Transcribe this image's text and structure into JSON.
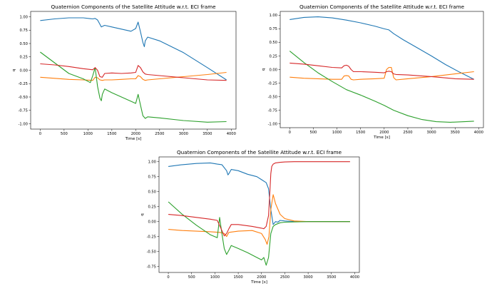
{
  "chart_data": [
    {
      "type": "line",
      "title": "Quaternion Components of the Satellite Attitude w.r.t. ECI frame",
      "xlabel": "Time [s]",
      "ylabel": "q",
      "xlim": [
        -200,
        4100
      ],
      "ylim": [
        -1.1,
        1.1
      ],
      "xticks": [
        0,
        500,
        1000,
        1500,
        2000,
        2500,
        3000,
        3500,
        4000
      ],
      "yticks": [
        1.0,
        0.75,
        0.5,
        0.25,
        0.0,
        -0.25,
        -0.5,
        -0.75,
        -1.0
      ],
      "grid": false,
      "series": [
        {
          "color": "#1f77b4",
          "x": [
            0,
            300,
            600,
            900,
            1100,
            1150,
            1200,
            1250,
            1280,
            1300,
            1350,
            1500,
            1700,
            1900,
            2000,
            2050,
            2100,
            2150,
            2180,
            2200,
            2250,
            2500,
            3000,
            3500,
            3900
          ],
          "y": [
            0.93,
            0.96,
            0.98,
            0.98,
            0.96,
            0.97,
            0.94,
            0.86,
            0.81,
            0.82,
            0.84,
            0.81,
            0.77,
            0.73,
            0.78,
            0.9,
            0.72,
            0.52,
            0.44,
            0.55,
            0.62,
            0.55,
            0.33,
            0.05,
            -0.18
          ]
        },
        {
          "color": "#ff7f0e",
          "x": [
            0,
            300,
            600,
            900,
            1100,
            1150,
            1200,
            1250,
            1300,
            1350,
            1500,
            1700,
            1900,
            2000,
            2050,
            2100,
            2150,
            2200,
            2250,
            2500,
            3000,
            3500,
            3900
          ],
          "y": [
            -0.13,
            -0.15,
            -0.17,
            -0.18,
            -0.19,
            -0.13,
            -0.14,
            -0.18,
            -0.19,
            -0.18,
            -0.18,
            -0.17,
            -0.16,
            -0.16,
            -0.1,
            -0.12,
            -0.17,
            -0.19,
            -0.18,
            -0.16,
            -0.12,
            -0.08,
            -0.04
          ]
        },
        {
          "color": "#2ca02c",
          "x": [
            0,
            300,
            600,
            900,
            1050,
            1100,
            1150,
            1200,
            1250,
            1280,
            1300,
            1350,
            1500,
            1700,
            1900,
            2000,
            2050,
            2100,
            2150,
            2200,
            2250,
            2500,
            3000,
            3500,
            3900
          ],
          "y": [
            0.34,
            0.14,
            -0.06,
            -0.16,
            -0.23,
            -0.1,
            0.05,
            -0.3,
            -0.52,
            -0.57,
            -0.45,
            -0.35,
            -0.42,
            -0.5,
            -0.58,
            -0.62,
            -0.45,
            -0.65,
            -0.85,
            -0.9,
            -0.87,
            -0.89,
            -0.94,
            -0.97,
            -0.96
          ]
        },
        {
          "color": "#d62728",
          "x": [
            0,
            300,
            600,
            900,
            1100,
            1150,
            1200,
            1250,
            1300,
            1350,
            1500,
            1700,
            1900,
            2000,
            2050,
            2100,
            2150,
            2200,
            2250,
            2500,
            3000,
            3500,
            3900
          ],
          "y": [
            0.12,
            0.1,
            0.07,
            0.03,
            0.01,
            0.05,
            0.0,
            -0.12,
            -0.13,
            -0.06,
            -0.05,
            -0.06,
            -0.05,
            -0.04,
            0.09,
            0.05,
            -0.03,
            -0.07,
            -0.08,
            -0.1,
            -0.14,
            -0.18,
            -0.19
          ]
        }
      ]
    },
    {
      "type": "line",
      "title": "Quaternion Components of the Satellite Attitude w.r.t. ECI frame",
      "xlabel": "Time [s]",
      "ylabel": "q",
      "xlim": [
        -200,
        4100
      ],
      "ylim": [
        -1.07,
        1.07
      ],
      "xticks": [
        0,
        500,
        1000,
        1500,
        2000,
        2500,
        3000,
        3500,
        4000
      ],
      "yticks": [
        1.0,
        0.75,
        0.5,
        0.25,
        0.0,
        -0.25,
        -0.5,
        -0.75,
        -1.0
      ],
      "grid": false,
      "series": [
        {
          "color": "#1f77b4",
          "x": [
            0,
            300,
            600,
            900,
            1200,
            1500,
            1800,
            2000,
            2100,
            2200,
            2400,
            2700,
            3000,
            3300,
            3600,
            3900
          ],
          "y": [
            0.92,
            0.96,
            0.97,
            0.95,
            0.91,
            0.86,
            0.8,
            0.75,
            0.73,
            0.66,
            0.55,
            0.4,
            0.25,
            0.09,
            -0.05,
            -0.18
          ]
        },
        {
          "color": "#ff7f0e",
          "x": [
            0,
            300,
            600,
            900,
            1100,
            1150,
            1200,
            1250,
            1300,
            1350,
            1500,
            1800,
            2000,
            2050,
            2100,
            2150,
            2200,
            2250,
            2500,
            3000,
            3500,
            3900
          ],
          "y": [
            -0.14,
            -0.16,
            -0.17,
            -0.18,
            -0.18,
            -0.12,
            -0.11,
            -0.12,
            -0.18,
            -0.19,
            -0.18,
            -0.17,
            -0.16,
            0.0,
            0.04,
            0.04,
            -0.15,
            -0.19,
            -0.17,
            -0.13,
            -0.08,
            -0.04
          ]
        },
        {
          "color": "#2ca02c",
          "x": [
            0,
            300,
            600,
            900,
            1200,
            1500,
            1800,
            2000,
            2200,
            2500,
            2800,
            3100,
            3400,
            3700,
            3900
          ],
          "y": [
            0.34,
            0.13,
            -0.06,
            -0.22,
            -0.37,
            -0.47,
            -0.58,
            -0.66,
            -0.75,
            -0.85,
            -0.92,
            -0.96,
            -0.97,
            -0.96,
            -0.95
          ]
        },
        {
          "color": "#d62728",
          "x": [
            0,
            300,
            600,
            900,
            1100,
            1150,
            1200,
            1250,
            1300,
            1350,
            1500,
            1800,
            2000,
            2050,
            2100,
            2150,
            2200,
            2250,
            2500,
            3000,
            3500,
            3900
          ],
          "y": [
            0.12,
            0.1,
            0.07,
            0.04,
            0.03,
            0.07,
            0.08,
            0.06,
            0.0,
            -0.04,
            -0.04,
            -0.05,
            -0.06,
            -0.04,
            -0.03,
            -0.04,
            -0.08,
            -0.09,
            -0.1,
            -0.13,
            -0.17,
            -0.18
          ]
        }
      ]
    },
    {
      "type": "line",
      "title": "Quaternion Components of the Satellite Attitude w.r.t. ECI frame",
      "xlabel": "Time [s]",
      "ylabel": "q",
      "xlim": [
        -200,
        4100
      ],
      "ylim": [
        -0.85,
        1.08
      ],
      "xticks": [
        0,
        500,
        1000,
        1500,
        2000,
        2500,
        3000,
        3500,
        4000
      ],
      "yticks": [
        1.0,
        0.75,
        0.5,
        0.25,
        0.0,
        -0.25,
        -0.5,
        -0.75
      ],
      "grid": false,
      "series": [
        {
          "color": "#1f77b4",
          "x": [
            0,
            300,
            600,
            900,
            1050,
            1150,
            1250,
            1280,
            1300,
            1350,
            1500,
            1700,
            1900,
            2000,
            2100,
            2150,
            2200,
            2250,
            2300,
            2350,
            2400,
            2500,
            2700,
            3000,
            3500,
            3900
          ],
          "y": [
            0.92,
            0.95,
            0.97,
            0.98,
            0.96,
            0.95,
            0.85,
            0.78,
            0.8,
            0.87,
            0.85,
            0.79,
            0.75,
            0.7,
            0.65,
            0.55,
            0.2,
            -0.05,
            0.0,
            -0.01,
            0.02,
            0.01,
            0.0,
            0.0,
            0.0,
            0.0
          ]
        },
        {
          "color": "#ff7f0e",
          "x": [
            0,
            300,
            600,
            900,
            1100,
            1200,
            1250,
            1300,
            1500,
            1800,
            2000,
            2080,
            2120,
            2160,
            2200,
            2250,
            2300,
            2400,
            2500,
            2700,
            3000,
            3500,
            3900
          ],
          "y": [
            -0.13,
            -0.15,
            -0.16,
            -0.17,
            -0.18,
            -0.2,
            -0.25,
            -0.18,
            -0.16,
            -0.15,
            -0.2,
            -0.3,
            -0.38,
            -0.25,
            0.2,
            0.45,
            0.3,
            0.12,
            0.05,
            0.01,
            0.0,
            0.0,
            0.0
          ]
        },
        {
          "color": "#2ca02c",
          "x": [
            0,
            300,
            600,
            900,
            1050,
            1100,
            1150,
            1200,
            1250,
            1300,
            1350,
            1500,
            1700,
            1900,
            2000,
            2050,
            2100,
            2150,
            2200,
            2250,
            2300,
            2400,
            2500,
            3000,
            3500,
            3900
          ],
          "y": [
            0.33,
            0.12,
            -0.06,
            -0.22,
            -0.27,
            0.07,
            -0.2,
            -0.45,
            -0.55,
            -0.48,
            -0.4,
            -0.45,
            -0.52,
            -0.6,
            -0.64,
            -0.6,
            -0.73,
            -0.6,
            -0.2,
            -0.08,
            -0.05,
            -0.02,
            -0.01,
            0.0,
            0.0,
            0.0
          ]
        },
        {
          "color": "#d62728",
          "x": [
            0,
            300,
            600,
            900,
            1050,
            1150,
            1200,
            1250,
            1300,
            1350,
            1500,
            1800,
            2000,
            2050,
            2100,
            2150,
            2180,
            2200,
            2220,
            2250,
            2300,
            2400,
            2500,
            2700,
            3000,
            3500,
            3900
          ],
          "y": [
            0.12,
            0.1,
            0.07,
            0.04,
            0.02,
            -0.15,
            -0.24,
            -0.2,
            -0.12,
            -0.05,
            -0.05,
            -0.08,
            -0.11,
            -0.12,
            -0.08,
            0.1,
            0.5,
            0.8,
            0.92,
            0.96,
            0.98,
            0.99,
            0.995,
            1.0,
            1.0,
            1.0,
            1.0
          ]
        }
      ]
    }
  ]
}
